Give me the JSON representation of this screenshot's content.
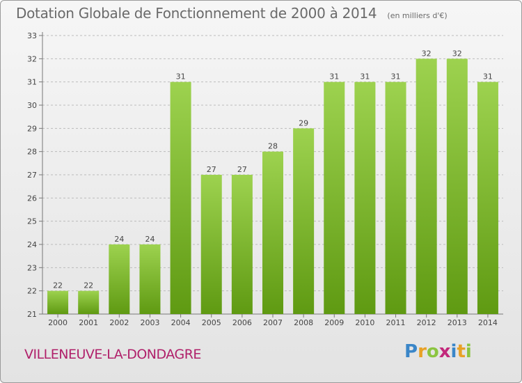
{
  "title": "Dotation Globale de Fonctionnement de 2000 à 2014",
  "subtitle": "(en milliers d'€)",
  "commune": "VILLENEUVE-LA-DONDAGRE",
  "logo": {
    "letters": [
      "P",
      "r",
      "o",
      "x",
      "i",
      "t",
      "i"
    ]
  },
  "colors": {
    "bar_light": "#9dd24f",
    "bar_dark": "#5f9a12",
    "commune": "#b0206a",
    "grid": "#bbbbbb"
  },
  "chart_data": {
    "type": "bar",
    "title": "Dotation Globale de Fonctionnement de 2000 à 2014",
    "subtitle": "(en milliers d'€)",
    "categories": [
      "2000",
      "2001",
      "2002",
      "2003",
      "2004",
      "2005",
      "2006",
      "2007",
      "2008",
      "2009",
      "2010",
      "2011",
      "2012",
      "2013",
      "2014"
    ],
    "values": [
      22,
      22,
      24,
      24,
      31,
      27,
      27,
      28,
      29,
      31,
      31,
      31,
      32,
      32,
      31
    ],
    "value_labels": [
      "22",
      "22",
      "24",
      "24",
      "31",
      "27",
      "27",
      "28",
      "29",
      "31",
      "31",
      "31",
      "32",
      "32",
      "31"
    ],
    "y_ticks": [
      "21",
      "22",
      "23",
      "24",
      "25",
      "26",
      "27",
      "28",
      "29",
      "30",
      "31",
      "32",
      "33"
    ],
    "ylim": [
      21,
      33
    ],
    "grid": "horizontal dashed",
    "legend": "none"
  }
}
